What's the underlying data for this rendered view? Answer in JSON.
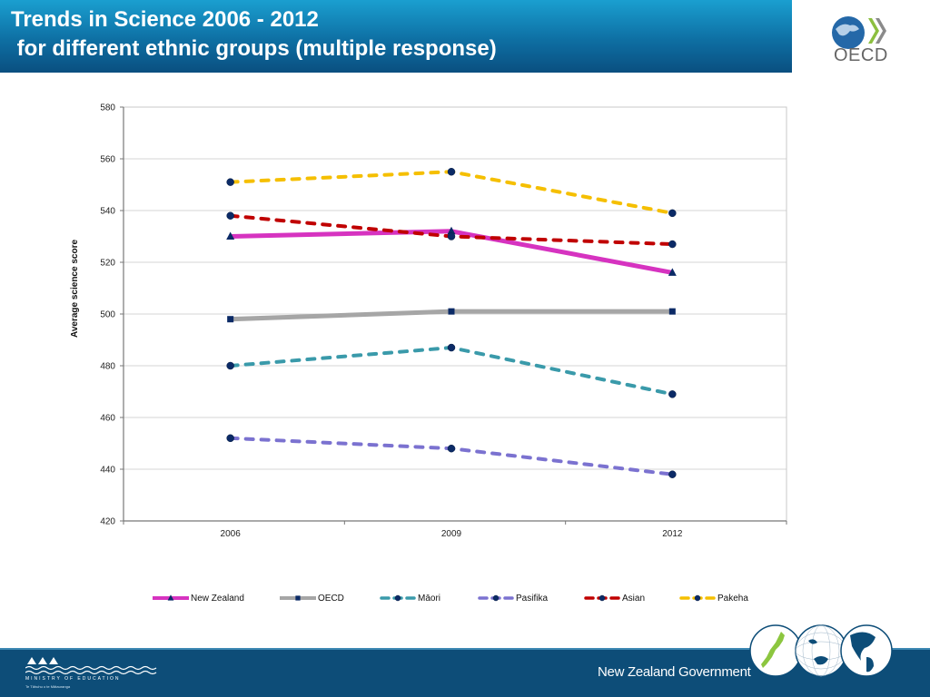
{
  "header": {
    "title_line1": "Trends in Science 2006 - 2012",
    "title_line2": " for different ethnic groups (multiple response)",
    "logo_text": "OECD"
  },
  "footer": {
    "ministry_label": "MINISTRY OF EDUCATION",
    "ministry_sub": "Te Tāhuhu o te Mātauranga",
    "government_label": "New Zealand Government"
  },
  "colors": {
    "header_blue": "#0e6fa3",
    "footer_blue": "#0d4d78",
    "marker": "#0b2a66"
  },
  "chart_data": {
    "type": "line",
    "title": "",
    "xlabel": "",
    "ylabel": "Average science score",
    "ylim": [
      420,
      580
    ],
    "yticks": [
      420,
      440,
      460,
      480,
      500,
      520,
      540,
      560,
      580
    ],
    "ytick_labels": [
      "420",
      "440",
      "460",
      "480",
      "500",
      "520",
      "540",
      "560",
      "580"
    ],
    "categories": [
      "2006",
      "2009",
      "2012"
    ],
    "grid": true,
    "legend_position": "bottom",
    "series": [
      {
        "name": "New Zealand",
        "values": [
          530,
          532,
          516
        ],
        "color": "#d633c0",
        "dash": "solid",
        "marker": "triangle"
      },
      {
        "name": "OECD",
        "values": [
          498,
          501,
          501
        ],
        "color": "#a6a6a6",
        "dash": "solid",
        "marker": "square"
      },
      {
        "name": "Māori",
        "values": [
          480,
          487,
          469
        ],
        "color": "#3a9aaa",
        "dash": "dashed",
        "marker": "circle"
      },
      {
        "name": "Pasifika",
        "values": [
          452,
          448,
          438
        ],
        "color": "#7b72d0",
        "dash": "dashed",
        "marker": "circle"
      },
      {
        "name": "Asian",
        "values": [
          538,
          530,
          527
        ],
        "color": "#c00000",
        "dash": "dashed",
        "marker": "circle"
      },
      {
        "name": "Pakeha",
        "values": [
          551,
          555,
          539
        ],
        "color": "#f5bf00",
        "dash": "dashed",
        "marker": "circle"
      }
    ]
  }
}
